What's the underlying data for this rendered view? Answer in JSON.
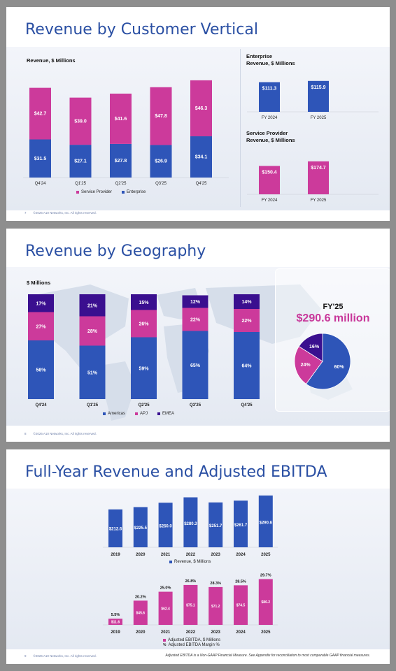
{
  "colors": {
    "enterprise": "#2e55b8",
    "service_provider": "#cc3a9b",
    "emea": "#3a0f8f",
    "title": "#2a4fa3"
  },
  "slides": [
    {
      "title": "Revenue by Customer Vertical",
      "page_number": "7",
      "footer": "©2026 A10 Networks, Inc. All rights reserved.",
      "main_label": "Revenue, $ Millions",
      "enterprise_label_line1": "Enterprise",
      "enterprise_label_line2": "Revenue, $ Millions",
      "sp_label_line1": "Service Provider",
      "sp_label_line2": "Revenue, $ Millions"
    },
    {
      "title": "Revenue by Geography",
      "page_number": "8",
      "footer": "©2026 A10 Networks, Inc. All rights reserved.",
      "main_label": "$ Millions",
      "fy_title": "FY'25",
      "fy_value": "$290.6 million"
    },
    {
      "title": "Full-Year Revenue and Adjusted EBITDA",
      "page_number": "9",
      "footer": "©2026 A10 Networks, Inc. All rights reserved.",
      "footnote": "Adjusted EBITDA is a Non-GAAP Financial Measure. See Appendix for reconciliation to most comparable GAAP financial measures."
    }
  ],
  "chart_data": [
    {
      "type": "bar",
      "stacked": true,
      "categories": [
        "Q4'24",
        "Q1'25",
        "Q2'25",
        "Q3'25",
        "Q4'25"
      ],
      "series": [
        {
          "name": "Enterprise",
          "values": [
            31.5,
            27.1,
            27.8,
            26.9,
            34.1
          ],
          "labels": [
            "$31.5",
            "$27.1",
            "$27.8",
            "$26.9",
            "$34.1"
          ]
        },
        {
          "name": "Service Provider",
          "values": [
            42.7,
            39.0,
            41.6,
            47.8,
            46.3
          ],
          "labels": [
            "$42.7",
            "$39.0",
            "$41.6",
            "$47.8",
            "$46.3"
          ]
        }
      ],
      "legend": [
        "Service Provider",
        "Enterprise"
      ],
      "ylabel": "Revenue, $ Millions"
    },
    {
      "type": "bar",
      "categories": [
        "FY 2024",
        "FY 2025"
      ],
      "values": [
        111.3,
        115.9
      ],
      "labels": [
        "$111.3",
        "$115.9"
      ],
      "ylabel": "Revenue, $ Millions"
    },
    {
      "type": "bar",
      "categories": [
        "FY 2024",
        "FY 2025"
      ],
      "values": [
        150.4,
        174.7
      ],
      "labels": [
        "$150.4",
        "$174.7"
      ],
      "ylabel": "Revenue, $ Millions"
    },
    {
      "type": "bar",
      "stacked": true,
      "percent": true,
      "categories": [
        "Q4'24",
        "Q1'25",
        "Q2'25",
        "Q3'25",
        "Q4'25"
      ],
      "series": [
        {
          "name": "Americas",
          "values": [
            56,
            51,
            59,
            65,
            64
          ]
        },
        {
          "name": "APJ",
          "values": [
            27,
            28,
            26,
            22,
            22
          ]
        },
        {
          "name": "EMEA",
          "values": [
            17,
            21,
            15,
            12,
            14
          ]
        }
      ],
      "ylabel": "$ Millions"
    },
    {
      "type": "pie",
      "title": "FY'25",
      "slices": [
        {
          "name": "Americas",
          "value": 60,
          "label": "60%"
        },
        {
          "name": "APJ",
          "value": 24,
          "label": "24%"
        },
        {
          "name": "EMEA",
          "value": 16,
          "label": "16%"
        }
      ]
    },
    {
      "type": "bar",
      "categories": [
        "2019",
        "2020",
        "2021",
        "2022",
        "2023",
        "2024",
        "2025"
      ],
      "series": [
        {
          "name": "Revenue, $ Millions",
          "values": [
            212.6,
            225.5,
            250.0,
            280.3,
            251.7,
            261.7,
            290.6
          ],
          "labels": [
            "$212.6",
            "$225.5",
            "$250.0",
            "$280.3",
            "$251.7",
            "$261.7",
            "$290.6"
          ]
        }
      ]
    },
    {
      "type": "bar",
      "categories": [
        "2019",
        "2020",
        "2021",
        "2022",
        "2023",
        "2024",
        "2025"
      ],
      "series": [
        {
          "name": "Adjusted EBITDA, $ Millions",
          "values": [
            11.6,
            45.6,
            62.4,
            75.1,
            71.2,
            74.5,
            86.2
          ],
          "labels": [
            "$11.6",
            "$45.6",
            "$62.4",
            "$75.1",
            "$71.2",
            "$74.5",
            "$86.2"
          ]
        },
        {
          "name": "Adjusted EBITDA Margin %",
          "values": [
            5.5,
            20.2,
            25.0,
            26.8,
            28.3,
            28.5,
            29.7
          ],
          "labels": [
            "5.5%",
            "20.2%",
            "25.0%",
            "26.8%",
            "28.3%",
            "28.5%",
            "29.7%"
          ]
        }
      ],
      "legend_symbols": [
        "",
        "%"
      ]
    }
  ]
}
